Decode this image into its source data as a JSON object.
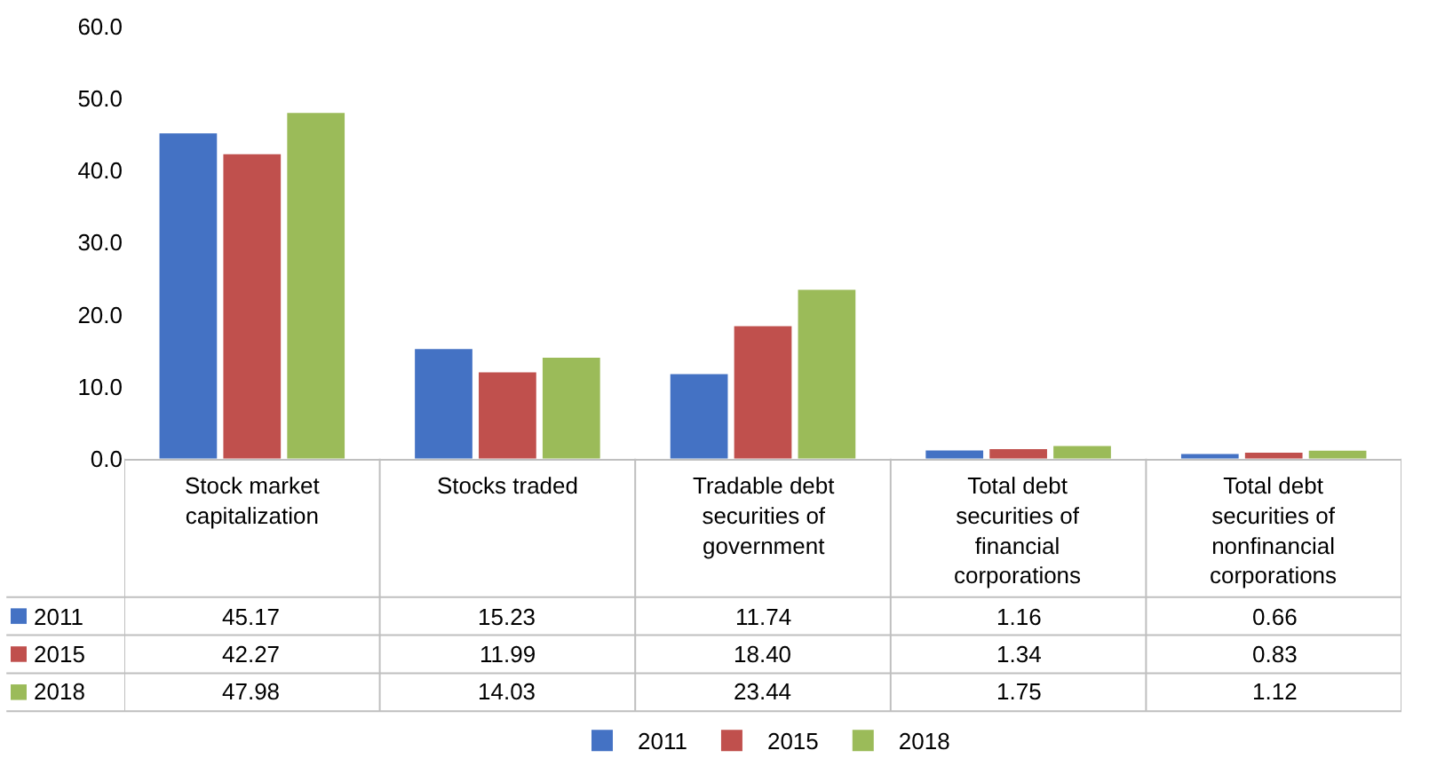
{
  "chart_data": {
    "type": "bar",
    "categories": [
      "Stock market capitalization",
      "Stocks traded",
      "Tradable debt securities of government",
      "Total debt securities of financial corporations",
      "Total debt securities of nonfinancial corporations"
    ],
    "series": [
      {
        "name": "2011",
        "color": "#4472c4",
        "values": [
          45.17,
          15.23,
          11.74,
          1.16,
          0.66
        ],
        "value_labels": [
          "45.17",
          "15.23",
          "11.74",
          "1.16",
          "0.66"
        ]
      },
      {
        "name": "2015",
        "color": "#c0504d",
        "values": [
          42.27,
          11.99,
          18.4,
          1.34,
          0.83
        ],
        "value_labels": [
          "42.27",
          "11.99",
          "18.40",
          "1.34",
          "0.83"
        ]
      },
      {
        "name": "2018",
        "color": "#9bbb59",
        "values": [
          47.98,
          14.03,
          23.44,
          1.75,
          1.12
        ],
        "value_labels": [
          "47.98",
          "14.03",
          "23.44",
          "1.75",
          "1.12"
        ]
      }
    ],
    "ylim": [
      0,
      60
    ],
    "yticks": [
      {
        "value": 0,
        "label": "0.0"
      },
      {
        "value": 10,
        "label": "10.0"
      },
      {
        "value": 20,
        "label": "20.0"
      },
      {
        "value": 30,
        "label": "30.0"
      },
      {
        "value": 40,
        "label": "40.0"
      },
      {
        "value": 50,
        "label": "50.0"
      },
      {
        "value": 60,
        "label": "60.0"
      }
    ],
    "grid": false,
    "legend": "bottom"
  }
}
